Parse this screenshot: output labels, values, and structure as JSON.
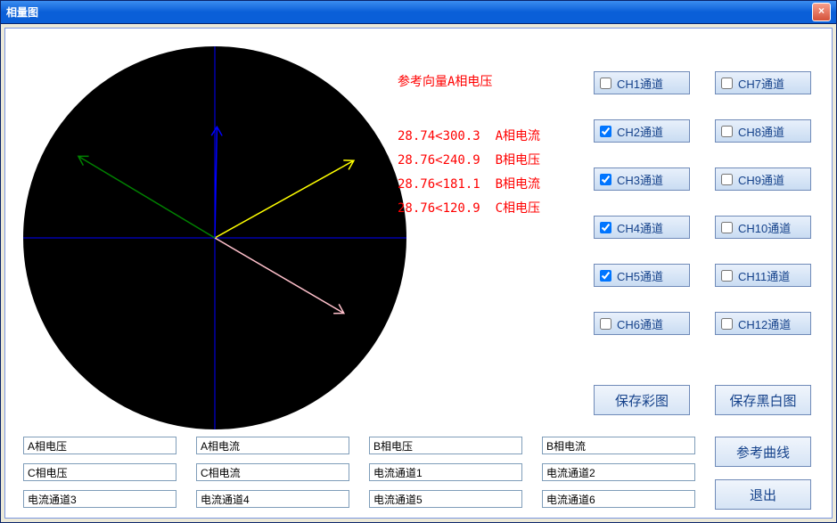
{
  "window": {
    "title": "相量图"
  },
  "reference_label": "参考向量A相电压",
  "readings": [
    {
      "mag": "28.74",
      "ang": "300.3",
      "name": "A相电流"
    },
    {
      "mag": "28.76",
      "ang": "240.9",
      "name": "B相电压"
    },
    {
      "mag": "28.76",
      "ang": "181.1",
      "name": "B相电流"
    },
    {
      "mag": "28.76",
      "ang": "120.9",
      "name": "C相电压"
    }
  ],
  "phasor": {
    "background": "#000000",
    "axis_color": "#0000ff",
    "radius": 215,
    "vectors": [
      {
        "angle_deg": 300.3,
        "len": 0.78,
        "color": "#ffc0cb",
        "name": "A相电流"
      },
      {
        "angle_deg": 240.9,
        "len": 0.83,
        "color": "#ffff00",
        "name": "B相电压"
      },
      {
        "angle_deg": 181.1,
        "len": 0.58,
        "color": "#0000ff",
        "name": "B相电流"
      },
      {
        "angle_deg": 120.9,
        "len": 0.83,
        "color": "#008000",
        "name": "C相电压"
      }
    ]
  },
  "channels_left": [
    {
      "label": "CH1通道",
      "checked": false
    },
    {
      "label": "CH2通道",
      "checked": true
    },
    {
      "label": "CH3通道",
      "checked": true
    },
    {
      "label": "CH4通道",
      "checked": true
    },
    {
      "label": "CH5通道",
      "checked": true
    },
    {
      "label": "CH6通道",
      "checked": false
    }
  ],
  "channels_right": [
    {
      "label": "CH7通道",
      "checked": false
    },
    {
      "label": "CH8通道",
      "checked": false
    },
    {
      "label": "CH9通道",
      "checked": false
    },
    {
      "label": "CH10通道",
      "checked": false
    },
    {
      "label": "CH11通道",
      "checked": false
    },
    {
      "label": "CH12通道",
      "checked": false
    }
  ],
  "buttons": {
    "save_color": "保存彩图",
    "save_bw": "保存黑白图",
    "ref_curve": "参考曲线",
    "exit": "退出"
  },
  "inputs": {
    "row1": [
      "A相电压",
      "A相电流",
      "B相电压",
      "B相电流"
    ],
    "row2": [
      "C相电压",
      "C相电流",
      "电流通道1",
      "电流通道2"
    ],
    "row3": [
      "电流通道3",
      "电流通道4",
      "电流通道5",
      "电流通道6"
    ]
  }
}
